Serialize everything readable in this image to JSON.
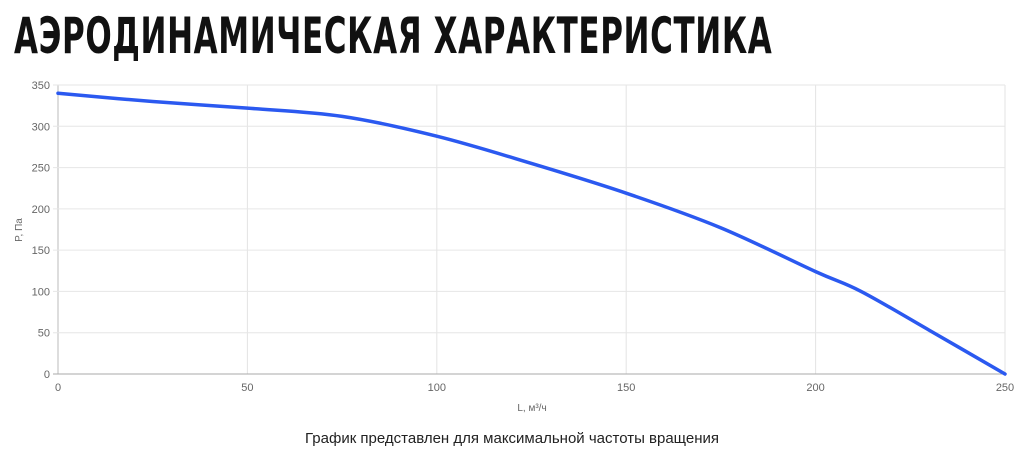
{
  "title": "АЭРОДИНАМИЧЕСКАЯ ХАРАКТЕРИСТИКА",
  "caption": "График представлен для максимальной частоты вращения",
  "chart_data": {
    "type": "line",
    "xlabel": "L, м³/ч",
    "ylabel": "P, Па",
    "xlim": [
      0,
      250
    ],
    "ylim": [
      0,
      350
    ],
    "xticks": [
      "0",
      "50",
      "100",
      "150",
      "200",
      "250"
    ],
    "yticks": [
      "0",
      "50",
      "100",
      "150",
      "200",
      "250",
      "300",
      "350"
    ],
    "grid": true,
    "line_color": "#2b59f0",
    "series": [
      {
        "x": [
          0,
          25,
          50,
          75,
          100,
          125,
          150,
          175,
          200,
          212,
          230,
          250
        ],
        "y": [
          340,
          330,
          322,
          312,
          288,
          255,
          219,
          177,
          124,
          100,
          53,
          0
        ]
      }
    ]
  }
}
